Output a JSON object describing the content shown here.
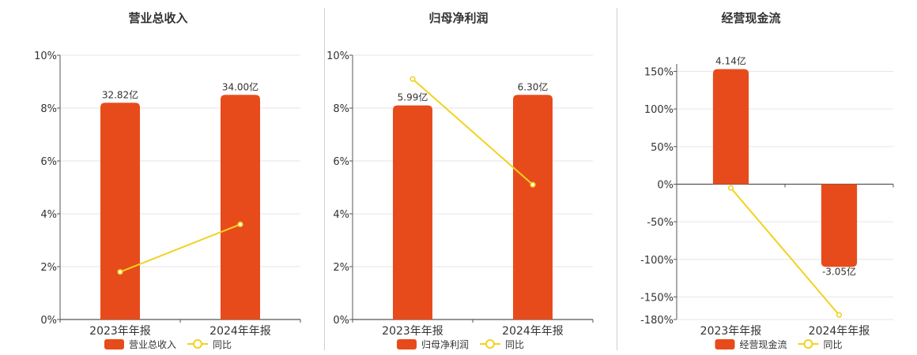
{
  "colors": {
    "bar": "#E84B1B",
    "line": "#F2D21F",
    "axis": "#555555",
    "grid": "#E6E6EA",
    "text": "#333333"
  },
  "chart_data": [
    {
      "type": "bar",
      "title": "营业总收入",
      "categories": [
        "2023年年报",
        "2024年年报"
      ],
      "ylim": [
        0,
        10
      ],
      "yticks": [
        0,
        2,
        4,
        6,
        8,
        10
      ],
      "ytick_labels": [
        "0%",
        "2%",
        "4%",
        "6%",
        "8%",
        "10%"
      ],
      "grid": true,
      "legend_position": "bottom",
      "series": [
        {
          "name": "营业总收入",
          "type": "bar",
          "bar_heights": [
            8.2,
            8.5
          ],
          "labels": [
            "32.82亿",
            "34.00亿"
          ]
        },
        {
          "name": "同比",
          "type": "line",
          "values": [
            1.8,
            3.6
          ]
        }
      ]
    },
    {
      "type": "bar",
      "title": "归母净利润",
      "categories": [
        "2023年年报",
        "2024年年报"
      ],
      "ylim": [
        0,
        10
      ],
      "yticks": [
        0,
        2,
        4,
        6,
        8,
        10
      ],
      "ytick_labels": [
        "0%",
        "2%",
        "4%",
        "6%",
        "8%",
        "10%"
      ],
      "grid": true,
      "legend_position": "bottom",
      "series": [
        {
          "name": "归母净利润",
          "type": "bar",
          "bar_heights": [
            8.1,
            8.5
          ],
          "labels": [
            "5.99亿",
            "6.30亿"
          ]
        },
        {
          "name": "同比",
          "type": "line",
          "values": [
            9.1,
            5.1
          ]
        }
      ]
    },
    {
      "type": "bar",
      "title": "经营现金流",
      "categories": [
        "2023年年报",
        "2024年年报"
      ],
      "ylim": [
        -180,
        160
      ],
      "yticks": [
        -180,
        -150,
        -100,
        -50,
        0,
        50,
        100,
        150
      ],
      "ytick_labels": [
        "-180%",
        "-150%",
        "-100%",
        "-50%",
        "0%",
        "50%",
        "100%",
        "150%"
      ],
      "grid": true,
      "legend_position": "bottom",
      "series": [
        {
          "name": "经营现金流",
          "type": "bar",
          "bar_heights": [
            153,
            -110
          ],
          "labels": [
            "4.14亿",
            "-3.05亿"
          ]
        },
        {
          "name": "同比",
          "type": "line",
          "values": [
            -5,
            -174
          ]
        }
      ]
    }
  ]
}
